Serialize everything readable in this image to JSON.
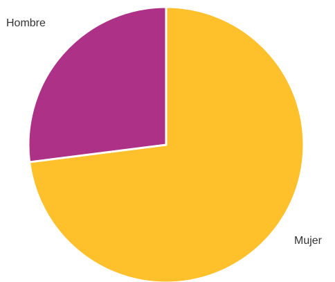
{
  "chart_data": {
    "type": "pie",
    "slices": [
      {
        "label": "Mujer",
        "value": 73,
        "color": "#fec02b"
      },
      {
        "label": "Hombre",
        "value": 27,
        "color": "#ad3187"
      }
    ],
    "start_angle_deg": 0,
    "direction": "clockwise",
    "separator_color": "#ffffff"
  }
}
